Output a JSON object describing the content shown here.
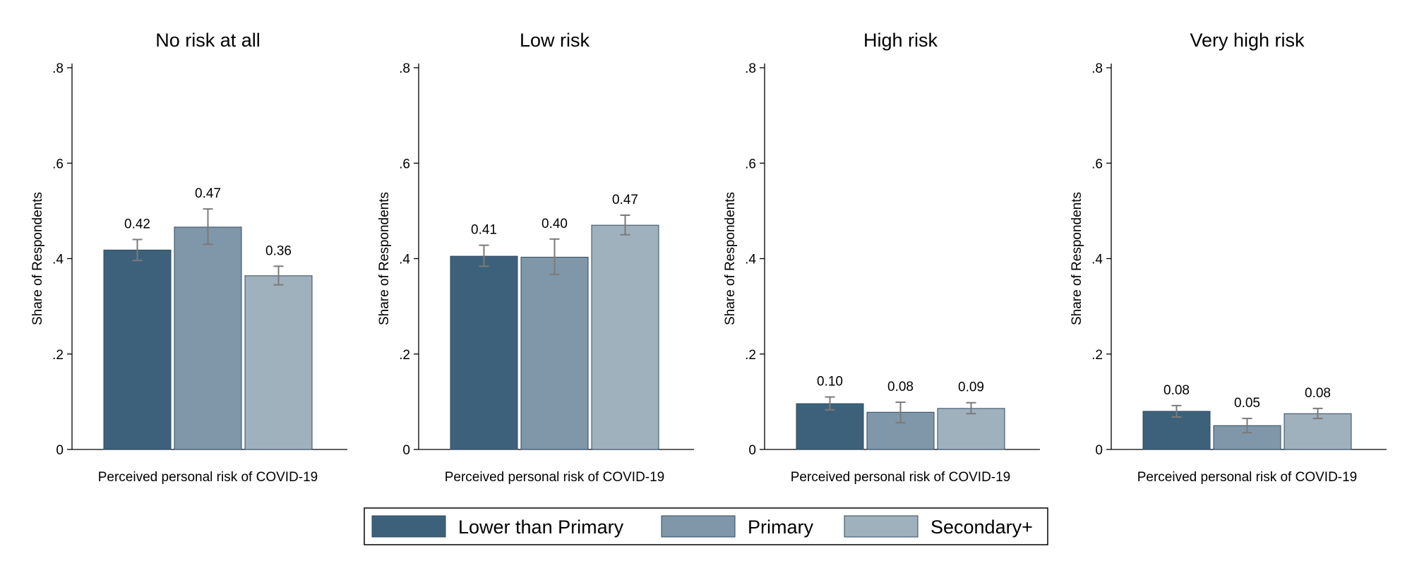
{
  "chart_data": {
    "type": "bar",
    "ylabel": "Share of Respondents",
    "xlabel": "Perceived personal risk of COVID-19",
    "ylim": [
      0,
      0.8
    ],
    "yticks": [
      {
        "value": 0,
        "label": "0"
      },
      {
        "value": 0.2,
        "label": ".2"
      },
      {
        "value": 0.4,
        "label": ".4"
      },
      {
        "value": 0.6,
        "label": ".6"
      },
      {
        "value": 0.8,
        "label": ".8"
      }
    ],
    "legend_position": "bottom",
    "series": [
      {
        "name": "Lower than Primary",
        "color": "#3d617b"
      },
      {
        "name": "Primary",
        "color": "#8097aa"
      },
      {
        "name": "Secondary+",
        "color": "#a0b1be"
      }
    ],
    "panels": [
      {
        "title": "No risk at all",
        "values": [
          0.418,
          0.466,
          0.364
        ],
        "labels": [
          "0.42",
          "0.47",
          "0.36"
        ],
        "ci": [
          [
            0.396,
            0.44
          ],
          [
            0.43,
            0.504
          ],
          [
            0.345,
            0.384
          ]
        ]
      },
      {
        "title": "Low risk",
        "values": [
          0.405,
          0.403,
          0.47
        ],
        "labels": [
          "0.41",
          "0.40",
          "0.47"
        ],
        "ci": [
          [
            0.384,
            0.428
          ],
          [
            0.367,
            0.441
          ],
          [
            0.45,
            0.491
          ]
        ]
      },
      {
        "title": "High risk",
        "values": [
          0.096,
          0.078,
          0.086
        ],
        "labels": [
          "0.10",
          "0.08",
          "0.09"
        ],
        "ci": [
          [
            0.083,
            0.11
          ],
          [
            0.056,
            0.099
          ],
          [
            0.075,
            0.098
          ]
        ]
      },
      {
        "title": "Very high risk",
        "values": [
          0.08,
          0.05,
          0.075
        ],
        "labels": [
          "0.08",
          "0.05",
          "0.08"
        ],
        "ci": [
          [
            0.068,
            0.092
          ],
          [
            0.035,
            0.065
          ],
          [
            0.065,
            0.086
          ]
        ]
      }
    ]
  }
}
